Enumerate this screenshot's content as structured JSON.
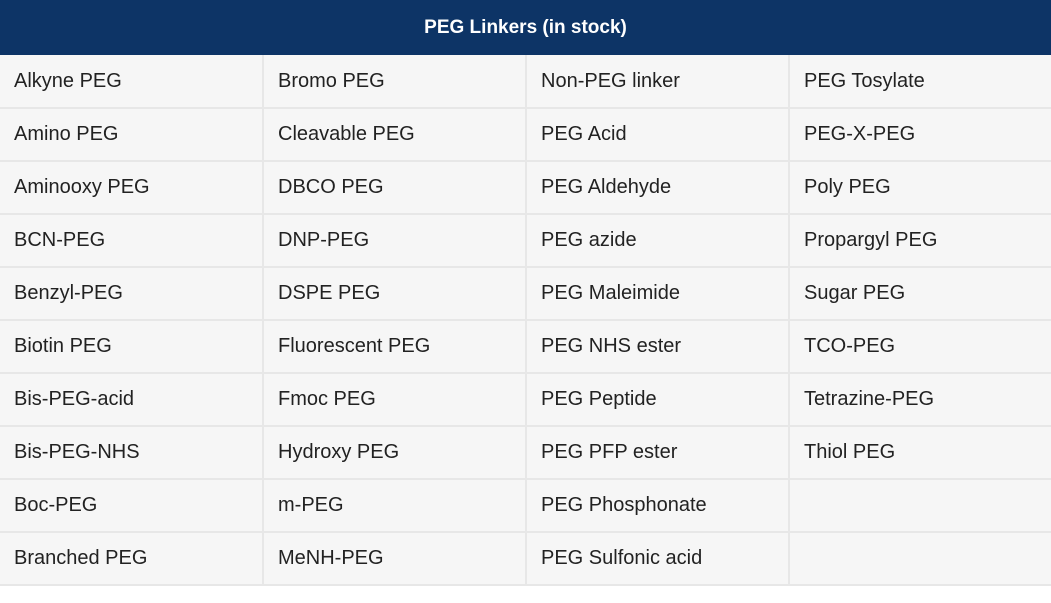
{
  "table": {
    "title": "PEG Linkers (in stock)",
    "rows": [
      [
        "Alkyne PEG",
        "Bromo PEG",
        "Non-PEG linker",
        "PEG Tosylate"
      ],
      [
        "Amino PEG",
        "Cleavable PEG",
        "PEG Acid",
        "PEG-X-PEG"
      ],
      [
        "Aminooxy PEG",
        "DBCO PEG",
        "PEG Aldehyde",
        "Poly PEG"
      ],
      [
        "BCN-PEG",
        "DNP-PEG",
        "PEG azide",
        "Propargyl PEG"
      ],
      [
        "Benzyl-PEG",
        "DSPE PEG",
        "PEG Maleimide",
        "Sugar PEG"
      ],
      [
        "Biotin PEG",
        "Fluorescent PEG",
        "PEG NHS ester",
        "TCO-PEG"
      ],
      [
        "Bis-PEG-acid",
        "Fmoc PEG",
        "PEG Peptide",
        "Tetrazine-PEG"
      ],
      [
        "Bis-PEG-NHS",
        "Hydroxy PEG",
        "PEG PFP ester",
        "Thiol PEG"
      ],
      [
        "Boc-PEG",
        "m-PEG",
        "PEG Phosphonate",
        ""
      ],
      [
        "Branched PEG",
        "MeNH-PEG",
        "PEG Sulfonic acid",
        ""
      ]
    ]
  }
}
